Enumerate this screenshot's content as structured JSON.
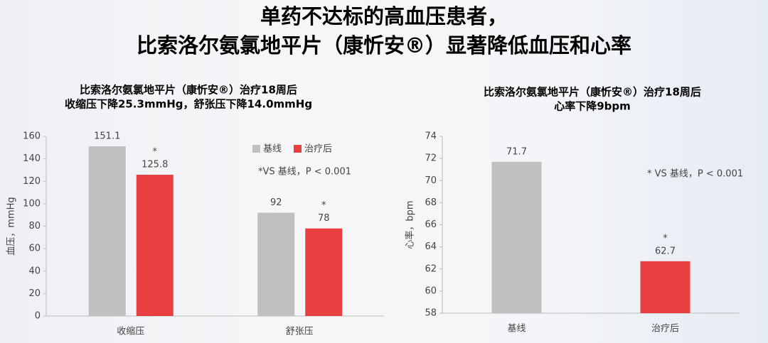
{
  "header": {
    "title_lines": [
      "单药不达标的高血压患者，",
      "比索洛尔氨氯地平片（康忻安®）显著降低血压和心率"
    ]
  },
  "chart_data": [
    {
      "type": "bar",
      "title_lines": [
        "比索洛尔氨氯地平片（康忻安®）治疗18周后",
        "收缩压下降25.3mmHg，舒张压下降14.0mmHg"
      ],
      "y_label": "血压，mmHg",
      "categories": [
        "收缩压",
        "舒张压"
      ],
      "series": [
        {
          "name": "基线",
          "color": "#c0c0c0",
          "values": [
            151.1,
            92
          ]
        },
        {
          "name": "治疗后",
          "color": "#e84040",
          "values": [
            125.8,
            78
          ],
          "annotations": [
            "*",
            "*"
          ]
        }
      ],
      "note": "*VS 基线，P < 0.001",
      "ylim": [
        0,
        160
      ],
      "yticks": [
        0,
        20,
        40,
        60,
        80,
        100,
        120,
        140,
        160
      ]
    },
    {
      "type": "bar",
      "title_lines": [
        "比索洛尔氨氯地平片（康忻安®）治疗18周后",
        "心率下降9bpm"
      ],
      "y_label": "心率，bpm",
      "categories": [
        "基线",
        "治疗后"
      ],
      "values": [
        71.7,
        62.7
      ],
      "colors": [
        "#c0c0c0",
        "#e84040"
      ],
      "annotations": [
        null,
        "*"
      ],
      "note": "* VS 基线，P < 0.001",
      "ylim": [
        58,
        74
      ],
      "yticks": [
        58,
        60,
        62,
        64,
        66,
        68,
        70,
        72,
        74
      ]
    }
  ]
}
